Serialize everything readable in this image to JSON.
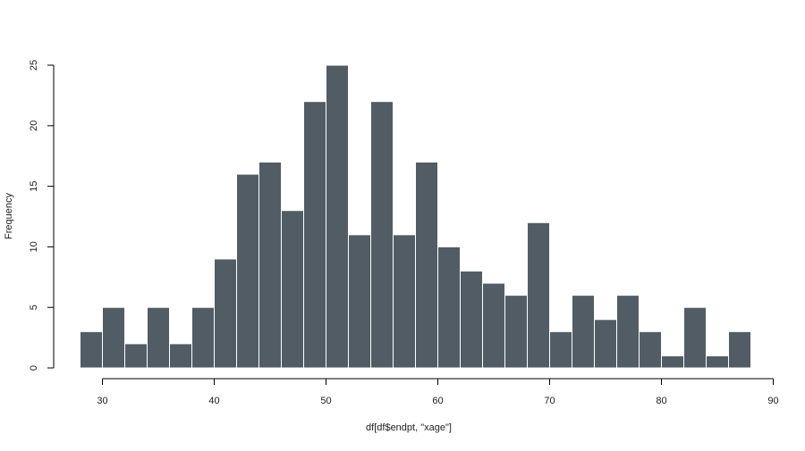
{
  "chart_data": {
    "type": "bar",
    "title": "",
    "xlabel": "df[df$endpt, \"xage\"]",
    "ylabel": "Frequency",
    "bin_width": 2,
    "bin_starts": [
      28,
      30,
      32,
      34,
      36,
      38,
      40,
      42,
      44,
      46,
      48,
      50,
      52,
      54,
      56,
      58,
      60,
      62,
      64,
      66,
      68,
      70,
      72,
      74,
      76,
      78,
      80,
      82,
      84,
      86
    ],
    "values": [
      3,
      5,
      2,
      5,
      2,
      5,
      9,
      16,
      17,
      13,
      22,
      25,
      11,
      22,
      11,
      17,
      10,
      8,
      7,
      6,
      12,
      3,
      6,
      4,
      6,
      3,
      1,
      5,
      1,
      3
    ],
    "xlim": [
      28,
      90
    ],
    "ylim": [
      0,
      25
    ],
    "x_ticks": [
      "30",
      "40",
      "50",
      "60",
      "70",
      "80",
      "90"
    ],
    "y_ticks": [
      "0",
      "5",
      "10",
      "15",
      "20",
      "25"
    ],
    "bar_color": "#525c64",
    "bar_edge_color": "#ffffff",
    "grid": false,
    "legend": "none"
  }
}
